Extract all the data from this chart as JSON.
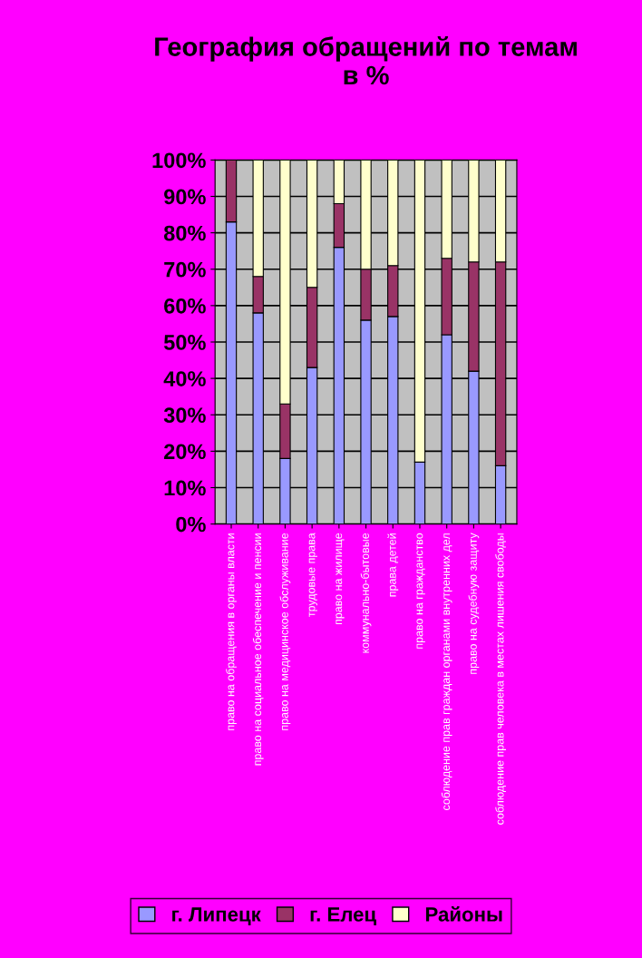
{
  "chart_data": {
    "type": "bar",
    "title": "География обращений по темам\nв %",
    "stacked": true,
    "categories": [
      "право на обращения в органы власти",
      "право на социальное обеспечение и пенсии",
      "право на медицинское обслуживание",
      "трудовые права",
      "право на жилище",
      "коммунально-бытовые",
      "права детей",
      "право на гражданство",
      "соблюдение прав граждан органами внутренних дел",
      "право на судебную защиту",
      "соблюдение прав человека в местах лишения свободы"
    ],
    "series": [
      {
        "name": "г. Липецк",
        "color": "#9999ff",
        "values": [
          83,
          58,
          18,
          43,
          76,
          56,
          57,
          17,
          52,
          42,
          16
        ]
      },
      {
        "name": "г. Елец",
        "color": "#993366",
        "values": [
          17,
          10,
          15,
          22,
          12,
          14,
          14,
          0,
          21,
          30,
          56
        ]
      },
      {
        "name": "Районы",
        "color": "#ffffcc",
        "values": [
          0,
          32,
          67,
          35,
          12,
          30,
          29,
          83,
          27,
          28,
          28
        ]
      }
    ],
    "ylim": [
      0,
      100
    ],
    "yticks": [
      {
        "value": 0,
        "label": "0%"
      },
      {
        "value": 10,
        "label": "10%"
      },
      {
        "value": 20,
        "label": "20%"
      },
      {
        "value": 30,
        "label": "30%"
      },
      {
        "value": 40,
        "label": "40%"
      },
      {
        "value": 50,
        "label": "50%"
      },
      {
        "value": 60,
        "label": "60%"
      },
      {
        "value": 70,
        "label": "70%"
      },
      {
        "value": 80,
        "label": "80%"
      },
      {
        "value": 90,
        "label": "90%"
      },
      {
        "value": 100,
        "label": "100%"
      }
    ],
    "grid": "y",
    "legend": "bottom"
  }
}
